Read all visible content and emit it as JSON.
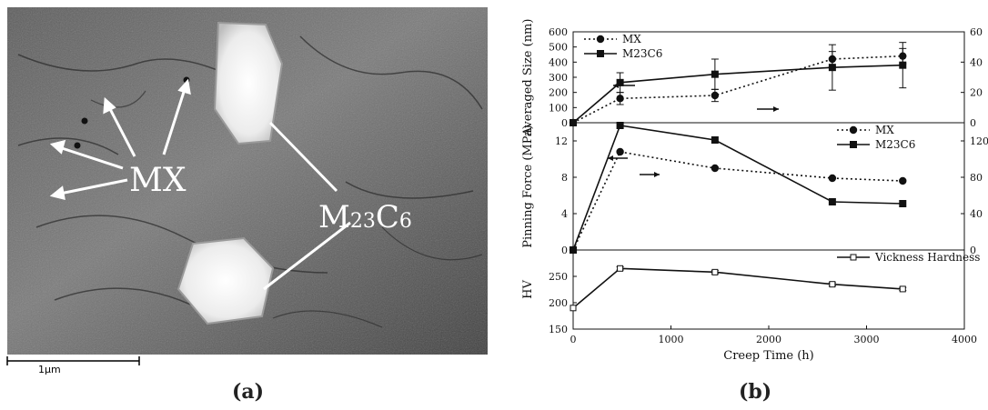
{
  "panel_a": {
    "caption": "(a)",
    "labels": {
      "mx": "MX",
      "m23c6_base": "M",
      "m23c6_sub1": "23",
      "m23c6_mid": "C",
      "m23c6_sub2": "6"
    },
    "scale_bar": {
      "label": "1µm"
    }
  },
  "panel_b": {
    "caption": "(b)"
  },
  "chart_data": [
    {
      "type": "line",
      "ylabel": "Averaged Size (nm)",
      "ylim": [
        0,
        600
      ],
      "yticks": [
        0,
        100,
        200,
        300,
        400,
        500,
        600
      ],
      "y2lim": [
        0,
        60
      ],
      "y2ticks": [
        0,
        20,
        40,
        60
      ],
      "xlim": [
        0,
        4000
      ],
      "legend_position": "top-left",
      "series": [
        {
          "name": "MX",
          "style": "dotted",
          "marker": "circle",
          "axis": "right",
          "x": [
            0,
            480,
            1450,
            2650,
            3370
          ],
          "y": [
            0,
            16,
            18,
            42,
            44
          ],
          "err": [
            0,
            4,
            4,
            5,
            5
          ]
        },
        {
          "name": "M23C6",
          "style": "solid",
          "marker": "square",
          "axis": "left",
          "x": [
            0,
            480,
            1450,
            2650,
            3370
          ],
          "y": [
            0,
            265,
            320,
            365,
            380
          ],
          "err": [
            0,
            65,
            100,
            150,
            150
          ]
        }
      ]
    },
    {
      "type": "line",
      "ylabel": "Pinning Force (MPa)",
      "ylim": [
        0,
        14
      ],
      "yticks": [
        0,
        4,
        8,
        12
      ],
      "y2lim": [
        0,
        140
      ],
      "y2ticks": [
        0,
        40,
        80,
        120
      ],
      "xlim": [
        0,
        4000
      ],
      "legend_position": "top-right",
      "series": [
        {
          "name": "MX",
          "style": "dotted",
          "marker": "circle",
          "axis": "left",
          "x": [
            0,
            480,
            1450,
            2650,
            3370
          ],
          "y": [
            0,
            10.8,
            9.0,
            7.9,
            7.6
          ]
        },
        {
          "name": "M23C6",
          "style": "solid",
          "marker": "square",
          "axis": "right",
          "x": [
            0,
            480,
            1450,
            2650,
            3370
          ],
          "y": [
            0,
            137,
            121,
            53,
            51
          ]
        }
      ]
    },
    {
      "type": "line",
      "xlabel": "Creep Time (h)",
      "ylabel": "HV",
      "ylim": [
        150,
        300
      ],
      "yticks": [
        150,
        200,
        250
      ],
      "xlim": [
        0,
        4000
      ],
      "xticks": [
        0,
        1000,
        2000,
        3000,
        4000
      ],
      "legend_position": "top-right",
      "series": [
        {
          "name": "Vickness Hardness",
          "style": "solid",
          "marker": "open-square",
          "x": [
            0,
            480,
            1450,
            2650,
            3370
          ],
          "y": [
            190,
            265,
            258,
            235,
            226
          ],
          "err": [
            0,
            3,
            3,
            3,
            3
          ]
        }
      ]
    }
  ]
}
